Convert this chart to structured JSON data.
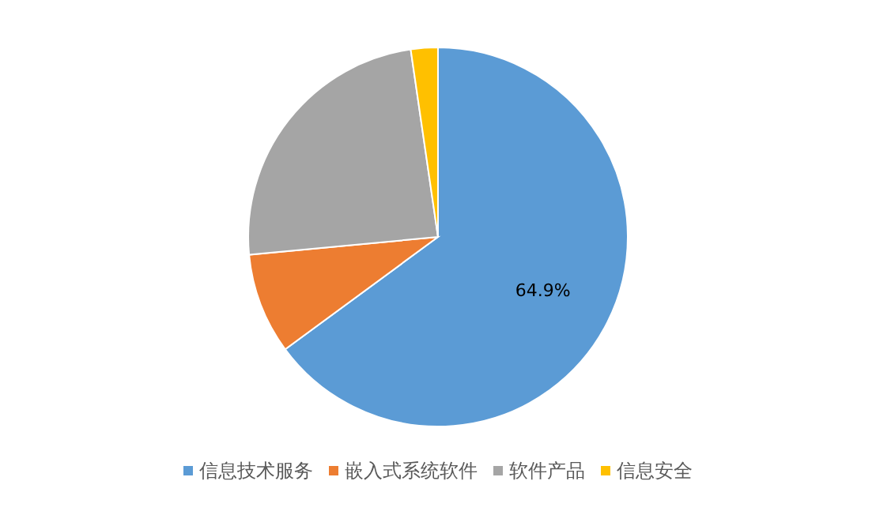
{
  "chart_data": {
    "type": "pie",
    "categories": [
      "信息技术服务",
      "嵌入式系统软件",
      "软件产品",
      "信息安全"
    ],
    "values": [
      64.9,
      8.6,
      24.2,
      2.3
    ],
    "colors": [
      "#5b9bd5",
      "#ed7d31",
      "#a5a5a5",
      "#ffc000"
    ],
    "value_labels": [
      "64.9%",
      null,
      null,
      null
    ],
    "legend": "bottom"
  }
}
